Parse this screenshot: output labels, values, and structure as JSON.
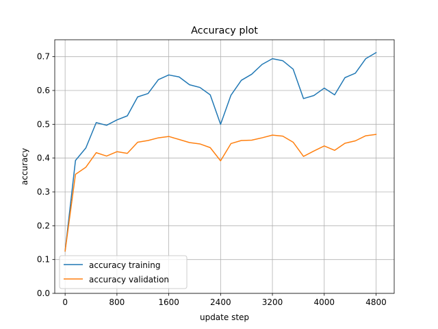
{
  "chart_data": {
    "type": "line",
    "title": "Accuracy plot",
    "xlabel": "update step",
    "ylabel": "accuracy",
    "xlim": [
      -160,
      5080
    ],
    "ylim": [
      0.0,
      0.75
    ],
    "xticks": [
      0,
      800,
      1600,
      2400,
      3200,
      4000,
      4800
    ],
    "yticks": [
      0.0,
      0.1,
      0.2,
      0.3,
      0.4,
      0.5,
      0.6,
      0.7
    ],
    "xtick_labels": [
      "0",
      "800",
      "1600",
      "2400",
      "3200",
      "4000",
      "4800"
    ],
    "ytick_labels": [
      "0.0",
      "0.1",
      "0.2",
      "0.3",
      "0.4",
      "0.5",
      "0.6",
      "0.7"
    ],
    "grid": true,
    "legend_position": "lower-left",
    "x": [
      0,
      160,
      320,
      480,
      640,
      800,
      960,
      1120,
      1280,
      1440,
      1600,
      1760,
      1920,
      2080,
      2240,
      2400,
      2560,
      2720,
      2880,
      3040,
      3200,
      3360,
      3520,
      3680,
      3840,
      4000,
      4160,
      4320,
      4480,
      4640,
      4800
    ],
    "series": [
      {
        "name": "accuracy training",
        "color": "#1f77b4",
        "values": [
          0.125,
          0.393,
          0.43,
          0.505,
          0.497,
          0.513,
          0.525,
          0.581,
          0.591,
          0.632,
          0.646,
          0.64,
          0.617,
          0.609,
          0.587,
          0.5,
          0.586,
          0.63,
          0.648,
          0.677,
          0.694,
          0.688,
          0.663,
          0.576,
          0.585,
          0.607,
          0.587,
          0.638,
          0.651,
          0.694,
          0.712
        ]
      },
      {
        "name": "accuracy validation",
        "color": "#ff7f0e",
        "values": [
          0.125,
          0.352,
          0.373,
          0.416,
          0.406,
          0.419,
          0.414,
          0.447,
          0.452,
          0.46,
          0.464,
          0.455,
          0.446,
          0.442,
          0.431,
          0.392,
          0.443,
          0.452,
          0.453,
          0.46,
          0.468,
          0.465,
          0.447,
          0.405,
          0.421,
          0.436,
          0.423,
          0.444,
          0.451,
          0.466,
          0.47
        ]
      }
    ]
  }
}
